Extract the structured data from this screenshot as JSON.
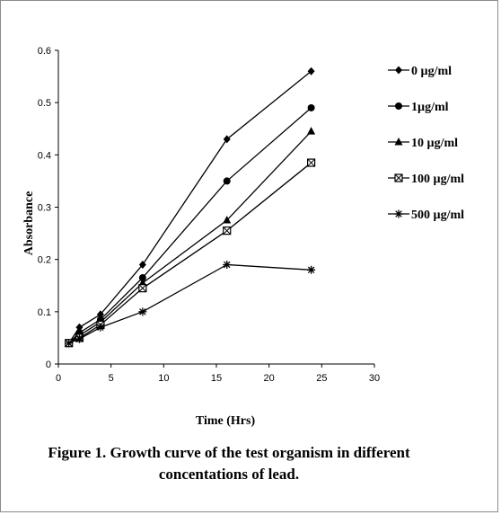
{
  "chart_data": {
    "type": "line",
    "title": "",
    "xlabel": "Time (Hrs)",
    "ylabel": "Absorbance",
    "xlim": [
      0,
      30
    ],
    "ylim": [
      0,
      0.6
    ],
    "x_ticks": [
      "0",
      "5",
      "10",
      "15",
      "20",
      "25",
      "30"
    ],
    "y_ticks": [
      "0",
      "0.1",
      "0.2",
      "0.3",
      "0.4",
      "0.5",
      "0.6"
    ],
    "grid": false,
    "legend_position": "right",
    "series": [
      {
        "name": "0 µg/ml",
        "marker": "diamond",
        "points": [
          [
            1,
            0.04
          ],
          [
            2,
            0.07
          ],
          [
            4,
            0.095
          ],
          [
            8,
            0.19
          ],
          [
            16,
            0.43
          ],
          [
            24,
            0.56
          ]
        ]
      },
      {
        "name": "1µg/ml",
        "marker": "circle",
        "points": [
          [
            1,
            0.04
          ],
          [
            2,
            0.06
          ],
          [
            4,
            0.085
          ],
          [
            8,
            0.165
          ],
          [
            16,
            0.35
          ],
          [
            24,
            0.49
          ]
        ]
      },
      {
        "name": "10 µg/ml",
        "marker": "triangle",
        "points": [
          [
            1,
            0.04
          ],
          [
            2,
            0.055
          ],
          [
            4,
            0.08
          ],
          [
            8,
            0.155
          ],
          [
            16,
            0.275
          ],
          [
            24,
            0.445
          ]
        ]
      },
      {
        "name": "100 µg/ml",
        "marker": "square-x",
        "points": [
          [
            1,
            0.04
          ],
          [
            2,
            0.05
          ],
          [
            4,
            0.075
          ],
          [
            8,
            0.145
          ],
          [
            16,
            0.255
          ],
          [
            24,
            0.385
          ]
        ]
      },
      {
        "name": "500 µg/ml",
        "marker": "star",
        "points": [
          [
            1,
            0.04
          ],
          [
            2,
            0.048
          ],
          [
            4,
            0.07
          ],
          [
            8,
            0.1
          ],
          [
            16,
            0.19
          ],
          [
            24,
            0.18
          ]
        ]
      }
    ]
  },
  "caption": {
    "line1": "Figure 1. Growth curve of the test organism in different",
    "line2": "concentations of lead."
  }
}
